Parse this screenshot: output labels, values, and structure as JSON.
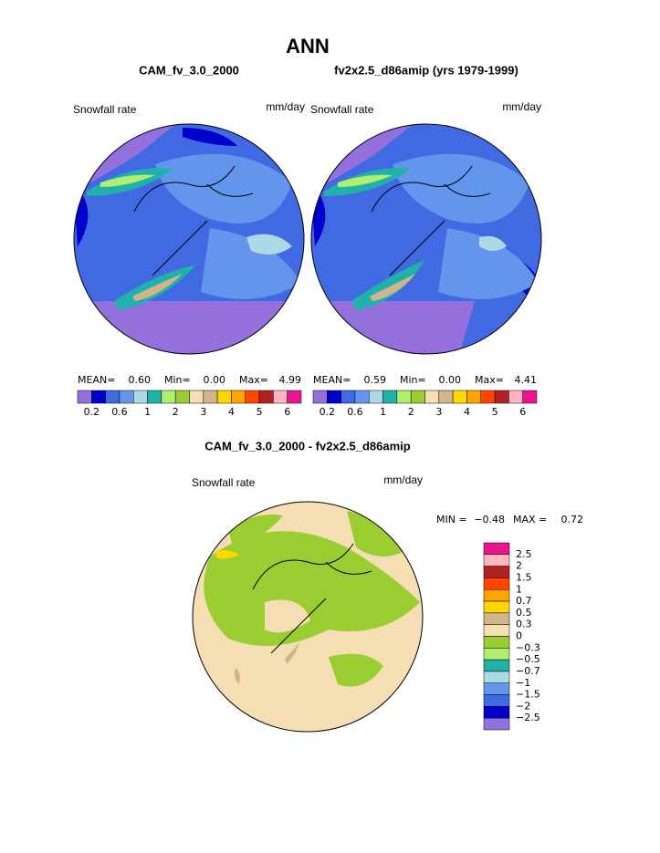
{
  "title": "ANN",
  "panels": [
    {
      "title": "CAM_fv_3.0_2000",
      "variable": "Snowfall rate",
      "units": "mm/day",
      "stats": {
        "mean_label": "MEAN=",
        "mean": "0.60",
        "min_label": "Min=",
        "min": "0.00",
        "max_label": "Max=",
        "max": "4.99"
      }
    },
    {
      "title": "fv2x2.5_d86amip (yrs 1979-1999)",
      "variable": "Snowfall rate",
      "units": "mm/day",
      "stats": {
        "mean_label": "MEAN=",
        "mean": "0.59",
        "min_label": "Min=",
        "min": "0.00",
        "max_label": "Max=",
        "max": "4.41"
      }
    }
  ],
  "colorbar": {
    "colors": [
      "#9370db",
      "#0000cd",
      "#4169e1",
      "#6495ed",
      "#add8e6",
      "#20b2aa",
      "#b0ee70",
      "#9acd32",
      "#f5deb3",
      "#d2b48c",
      "#ffd700",
      "#ffa500",
      "#ff4500",
      "#b22222",
      "#ffb6c1",
      "#e8158f"
    ],
    "labels": [
      "0.2",
      "0.6",
      "1",
      "2",
      "3",
      "4",
      "5",
      "6"
    ]
  },
  "difference": {
    "title": "CAM_fv_3.0_2000 - fv2x2.5_d86amip",
    "variable": "Snowfall rate",
    "units": "mm/day",
    "stats": {
      "min_label": "MIN =",
      "min": "−0.48",
      "max_label": "MAX =",
      "max": "0.72"
    },
    "colorbar": {
      "colors": [
        "#e8158f",
        "#ffb6c1",
        "#b22222",
        "#ff4500",
        "#ffa500",
        "#ffd700",
        "#d2b48c",
        "#f5deb3",
        "#9acd32",
        "#b0ee70",
        "#20b2aa",
        "#add8e6",
        "#6495ed",
        "#4169e1",
        "#0000cd",
        "#9370db"
      ],
      "labels": [
        "2.5",
        "2",
        "1.5",
        "1",
        "0.7",
        "0.5",
        "0.3",
        "0",
        "−0.3",
        "−0.5",
        "−0.7",
        "−1",
        "−1.5",
        "−2",
        "−2.5"
      ]
    }
  }
}
